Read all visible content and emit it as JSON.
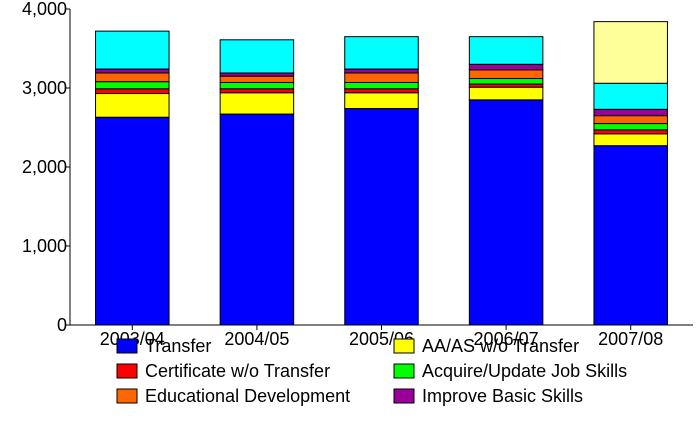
{
  "chart_data": {
    "type": "bar",
    "stacked": true,
    "title": "",
    "xlabel": "",
    "ylabel": "",
    "ylim": [
      0,
      4000
    ],
    "yticks": [
      0,
      1000,
      2000,
      3000,
      4000
    ],
    "ytick_labels": [
      "0",
      "1,000",
      "2,000",
      "3,000",
      "4,000"
    ],
    "grid": false,
    "legend_position": "bottom",
    "categories": [
      "2003/04",
      "2004/05",
      "2005/06",
      "2006/07",
      "2007/08"
    ],
    "series": [
      {
        "name": "Transfer",
        "color": "#0000ff",
        "values": [
          2630,
          2670,
          2740,
          2850,
          2270
        ]
      },
      {
        "name": "AA/AS w/o Transfer",
        "color": "#ffff00",
        "values": [
          300,
          270,
          200,
          160,
          150
        ]
      },
      {
        "name": "Certificate w/o Transfer",
        "color": "#ff0000",
        "values": [
          60,
          50,
          50,
          40,
          50
        ]
      },
      {
        "name": "Acquire/Update Job Skills",
        "color": "#00ff00",
        "values": [
          90,
          80,
          80,
          70,
          80
        ]
      },
      {
        "name": "Educational Development",
        "color": "#ff6600",
        "values": [
          110,
          80,
          120,
          110,
          100
        ]
      },
      {
        "name": "Improve Basic Skills",
        "color": "#990099",
        "values": [
          50,
          40,
          50,
          70,
          80
        ]
      },
      {
        "name": "",
        "color": "#00ffff",
        "values": [
          480,
          420,
          410,
          350,
          330
        ]
      },
      {
        "name": "",
        "color": "#ffff99",
        "values": [
          0,
          0,
          0,
          0,
          780
        ]
      }
    ]
  }
}
